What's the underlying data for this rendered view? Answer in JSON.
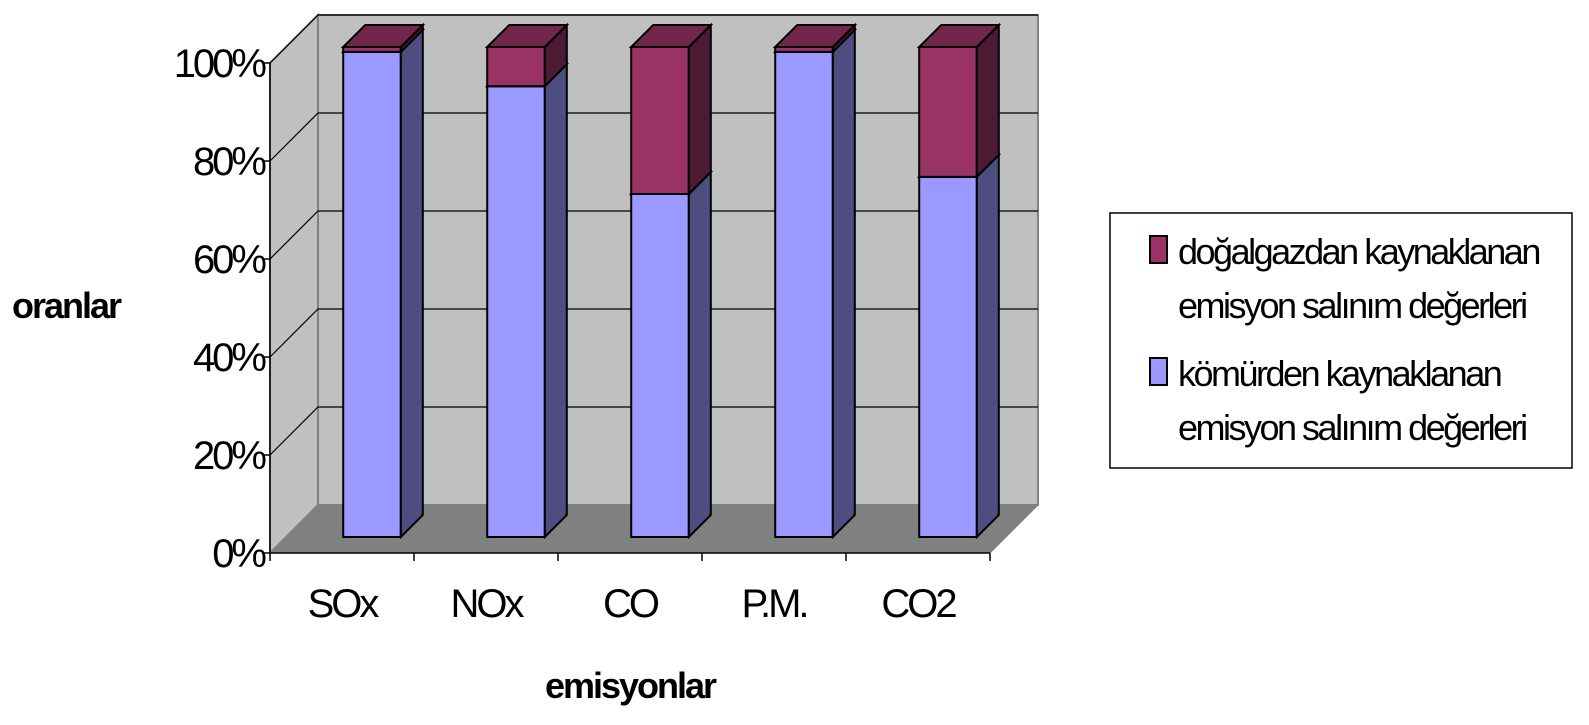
{
  "chart_data": {
    "type": "bar",
    "stacked": true,
    "percent": true,
    "three_d": true,
    "xlabel": "emisyonlar",
    "ylabel": "oranlar",
    "categories": [
      "SOx",
      "NOx",
      "CO",
      "P.M.",
      "CO2"
    ],
    "series": [
      {
        "name": "kömürden kaynaklanan emisyon salınım değerleri",
        "values": [
          99,
          92,
          70,
          99,
          73.5
        ],
        "color": "#9999ff"
      },
      {
        "name": "doğalgazdan kaynaklanan emisyon salınım değerleri",
        "values": [
          1,
          8,
          30,
          1,
          26.5
        ],
        "color": "#993366"
      }
    ],
    "ylim": [
      0,
      100
    ],
    "yticks": [
      "0%",
      "20%",
      "40%",
      "60%",
      "80%",
      "100%"
    ],
    "grid": true,
    "legend_position": "right"
  }
}
